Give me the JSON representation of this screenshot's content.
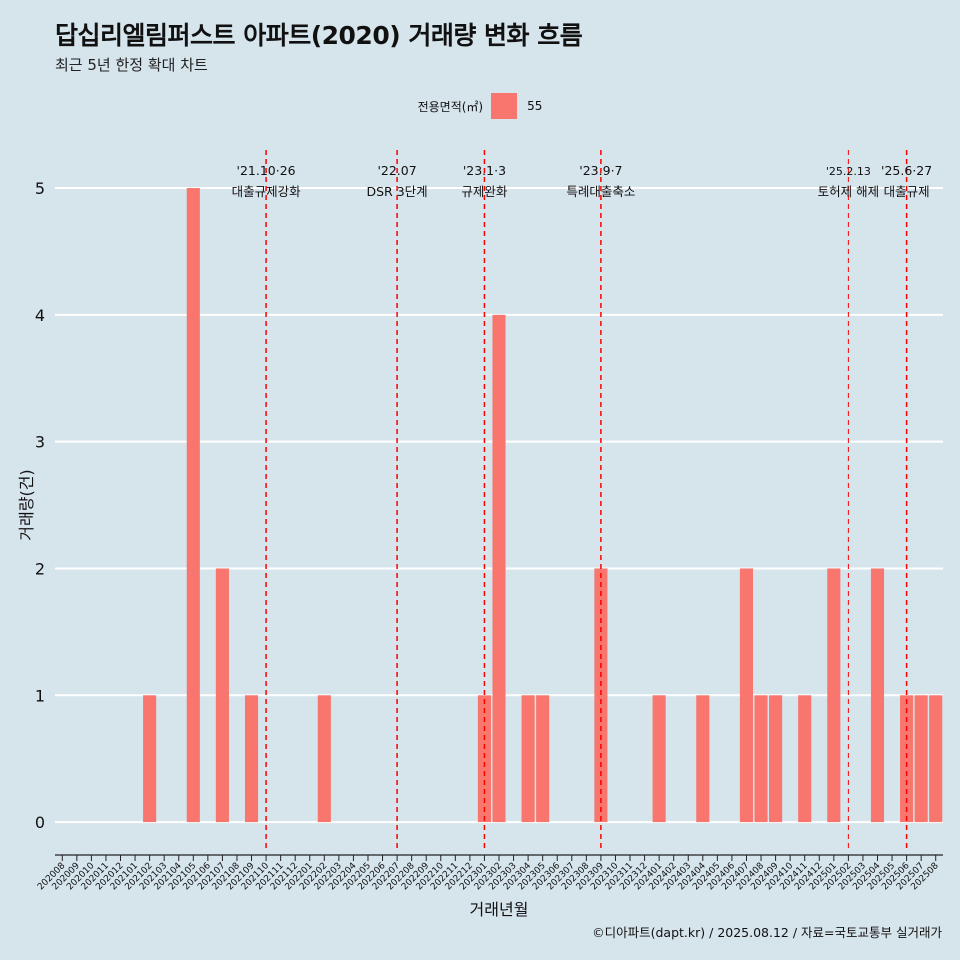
{
  "title": "답십리엘림퍼스트 아파트(2020) 거래량 변화 흐름",
  "subtitle": "최근 5년 한정 확대 차트",
  "legend": {
    "title": "전용면적(㎡)",
    "entries": [
      "55"
    ]
  },
  "caption": "©디아파트(dapt.kr) / 2025.08.12 / 자료=국토교통부 실거래가",
  "colors": {
    "bar": "#f8766d",
    "background": "#d6e4ec",
    "grid": "#ffffff",
    "event_line": "#ff0000"
  },
  "chart_data": {
    "type": "bar",
    "xlabel": "거래년월",
    "ylabel": "거래량(건)",
    "ylim": [
      -0.22,
      5.3
    ],
    "y_ticks": [
      0,
      1,
      2,
      3,
      4,
      5
    ],
    "grid": true,
    "legend_position": "top",
    "categories": [
      "202008",
      "202009",
      "202010",
      "202011",
      "202012",
      "202101",
      "202102",
      "202103",
      "202104",
      "202105",
      "202106",
      "202107",
      "202108",
      "202109",
      "202110",
      "202111",
      "202112",
      "202201",
      "202202",
      "202203",
      "202204",
      "202205",
      "202206",
      "202207",
      "202208",
      "202209",
      "202210",
      "202211",
      "202212",
      "202301",
      "202302",
      "202303",
      "202304",
      "202305",
      "202306",
      "202307",
      "202308",
      "202309",
      "202310",
      "202311",
      "202312",
      "202401",
      "202402",
      "202403",
      "202404",
      "202405",
      "202406",
      "202407",
      "202408",
      "202409",
      "202410",
      "202411",
      "202412",
      "202501",
      "202502",
      "202503",
      "202504",
      "202505",
      "202506",
      "202507",
      "202508"
    ],
    "series": [
      {
        "name": "55",
        "values": [
          0,
          0,
          0,
          0,
          0,
          0,
          1,
          0,
          0,
          5,
          0,
          2,
          0,
          1,
          0,
          0,
          0,
          0,
          1,
          0,
          0,
          0,
          0,
          0,
          0,
          0,
          0,
          0,
          0,
          1,
          4,
          0,
          1,
          1,
          0,
          0,
          0,
          2,
          0,
          0,
          0,
          1,
          0,
          0,
          1,
          0,
          0,
          2,
          1,
          1,
          0,
          1,
          0,
          2,
          0,
          0,
          2,
          0,
          1,
          1,
          1
        ]
      }
    ],
    "events": [
      {
        "date_label": "'21.10·26",
        "text": "대출규제강화",
        "month": "202110"
      },
      {
        "date_label": "'22.07",
        "text": "DSR 3단계",
        "month": "202207"
      },
      {
        "date_label": "'23.1·3",
        "text": "규제완화",
        "month": "202301"
      },
      {
        "date_label": "'23.9·7",
        "text": "특례대출축소",
        "month": "202309"
      },
      {
        "date_label": "'25.2.13",
        "text": "토허제 해제",
        "month": "202502"
      },
      {
        "date_label": "'25.6·27",
        "text": "대출규제",
        "month": "202506"
      }
    ]
  }
}
